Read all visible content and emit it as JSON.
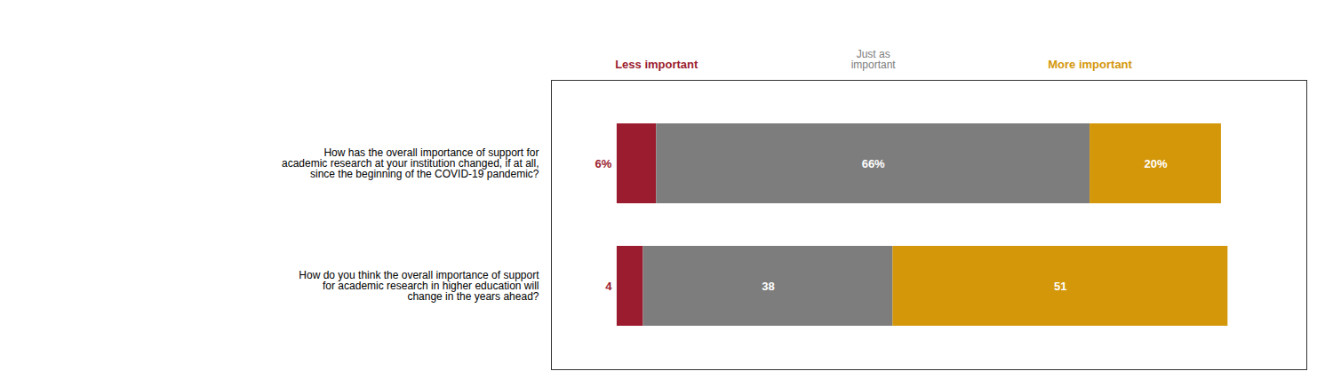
{
  "chart_data": {
    "type": "bar",
    "orientation": "horizontal",
    "stacked": true,
    "categories": [
      "How has the overall importance of support for\nacademic research at your institution changed, if at all,\nsince the beginning of the COVID-19 pandemic?",
      "How do you think the overall importance of support\nfor academic research in higher education will\nchange in the years ahead?"
    ],
    "series": [
      {
        "name": "Less important",
        "color": "#9b1c2e",
        "values": [
          6,
          4
        ],
        "value_labels": [
          "6%",
          "4"
        ]
      },
      {
        "name": "Just as\nimportant",
        "color": "#7d7d7d",
        "values": [
          66,
          38
        ],
        "value_labels": [
          "66%",
          "38"
        ]
      },
      {
        "name": "More important",
        "color": "#d4970a",
        "values": [
          20,
          51
        ],
        "value_labels": [
          "20%",
          "51"
        ]
      }
    ],
    "xlim": [
      -10,
      105
    ],
    "data_labels": true,
    "tick_labels": "y",
    "grid": false,
    "legend": "top"
  }
}
